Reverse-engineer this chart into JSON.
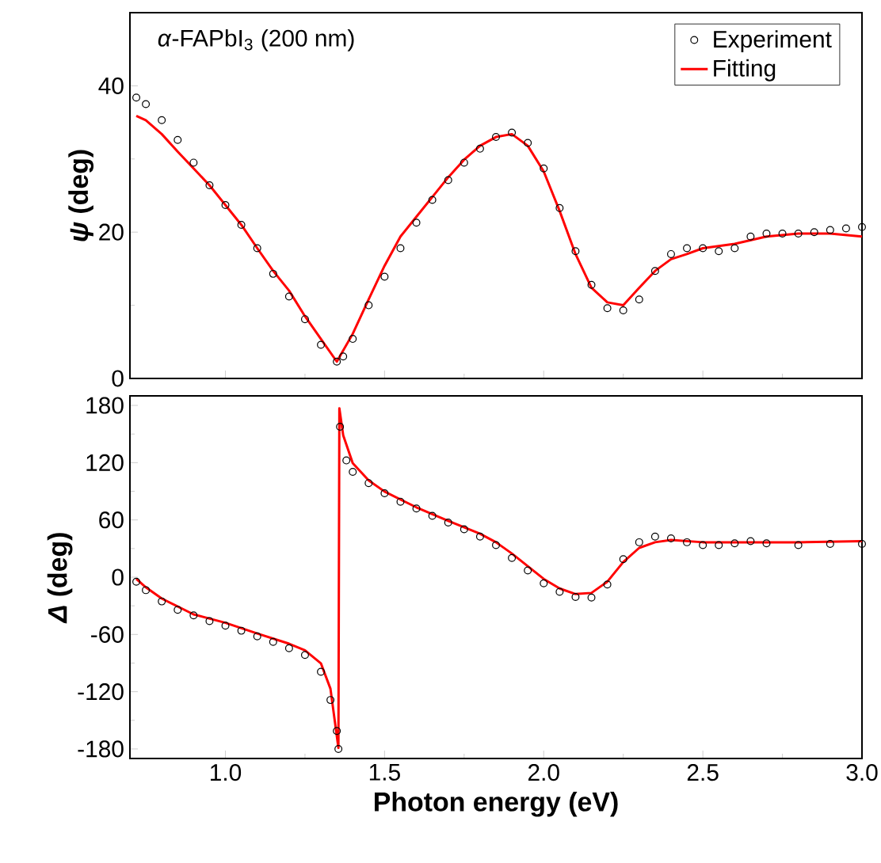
{
  "chart_data": [
    {
      "type": "line",
      "ylabel": "*ψ* (deg)",
      "annotations": [
        "*α*-FAPbI$_{3}$ (200 nm)"
      ],
      "xlim": [
        0.7,
        3.0
      ],
      "ylim": [
        0,
        50
      ],
      "xticks": [
        {
          "value": 1,
          "label": null
        },
        {
          "value": 1.5,
          "label": null
        },
        {
          "value": 2,
          "label": null
        },
        {
          "value": 2.5,
          "label": null
        },
        {
          "value": 3,
          "label": null
        }
      ],
      "yticks": [
        0,
        20,
        40
      ],
      "tick_labels": "y",
      "legend": "top right",
      "grid": false,
      "series": [
        {
          "name": "Experiment",
          "type": "scatter",
          "marker": "circle",
          "color": "#000000",
          "x": [
            0.72,
            0.75,
            0.8,
            0.85,
            0.9,
            0.95,
            1.0,
            1.05,
            1.1,
            1.15,
            1.2,
            1.25,
            1.3,
            1.35,
            1.37,
            1.4,
            1.45,
            1.5,
            1.55,
            1.6,
            1.65,
            1.7,
            1.75,
            1.8,
            1.85,
            1.9,
            1.95,
            2.0,
            2.05,
            2.1,
            2.15,
            2.2,
            2.25,
            2.3,
            2.35,
            2.4,
            2.45,
            2.5,
            2.55,
            2.6,
            2.65,
            2.7,
            2.75,
            2.8,
            2.85,
            2.9,
            2.95,
            3.0
          ],
          "values": [
            38.4,
            37.5,
            35.3,
            32.6,
            29.5,
            26.4,
            23.7,
            21.0,
            17.8,
            14.3,
            11.2,
            8.1,
            4.6,
            2.3,
            3.0,
            5.4,
            10.0,
            13.9,
            17.8,
            21.3,
            24.4,
            27.1,
            29.5,
            31.4,
            33.0,
            33.6,
            32.2,
            28.7,
            23.3,
            17.4,
            12.8,
            9.6,
            9.3,
            10.8,
            14.7,
            17.0,
            17.8,
            17.8,
            17.4,
            17.8,
            19.4,
            19.8,
            19.8,
            19.8,
            20.0,
            20.3,
            20.5,
            20.7
          ]
        },
        {
          "name": "Fitting",
          "type": "line",
          "color": "#ff0000",
          "x": [
            0.72,
            0.75,
            0.8,
            0.85,
            0.9,
            0.95,
            1.0,
            1.05,
            1.1,
            1.15,
            1.2,
            1.25,
            1.3,
            1.35,
            1.4,
            1.45,
            1.5,
            1.55,
            1.6,
            1.65,
            1.7,
            1.75,
            1.8,
            1.85,
            1.9,
            1.95,
            2.0,
            2.05,
            2.1,
            2.15,
            2.2,
            2.25,
            2.3,
            2.35,
            2.4,
            2.45,
            2.5,
            2.55,
            2.6,
            2.7,
            2.8,
            2.9,
            3.0
          ],
          "values": [
            35.9,
            35.3,
            33.4,
            31.0,
            28.7,
            26.4,
            23.7,
            21.0,
            17.8,
            14.7,
            12.0,
            8.5,
            5.4,
            2.3,
            6.1,
            10.8,
            15.4,
            19.4,
            22.1,
            24.8,
            27.5,
            29.9,
            31.8,
            33.0,
            33.4,
            31.8,
            28.3,
            22.9,
            17.0,
            12.4,
            10.4,
            10.0,
            12.4,
            14.7,
            16.3,
            17.0,
            17.8,
            18.1,
            18.4,
            19.4,
            19.8,
            19.8,
            19.4
          ]
        }
      ]
    },
    {
      "type": "line",
      "xlabel": "Photon energy (eV)",
      "ylabel": "*Δ* (deg)",
      "xlim": [
        0.7,
        3.0
      ],
      "ylim": [
        -190,
        190
      ],
      "xticks": [
        {
          "value": 1,
          "label": "1.0"
        },
        {
          "value": 1.5,
          "label": "1.5"
        },
        {
          "value": 2,
          "label": "2.0"
        },
        {
          "value": 2.5,
          "label": "2.5"
        },
        {
          "value": 3,
          "label": "3.0"
        }
      ],
      "yticks": [
        -180,
        -120,
        -60,
        0,
        60,
        120,
        180
      ],
      "legend": false,
      "grid": false,
      "series": [
        {
          "type": "scatter",
          "marker": "circle",
          "color": "#000000",
          "x": [
            0.72,
            0.75,
            0.8,
            0.85,
            0.9,
            0.95,
            1.0,
            1.05,
            1.1,
            1.15,
            1.2,
            1.25,
            1.3,
            1.33,
            1.35,
            1.355,
            1.36,
            1.38,
            1.4,
            1.45,
            1.5,
            1.55,
            1.6,
            1.65,
            1.7,
            1.75,
            1.8,
            1.85,
            1.9,
            1.95,
            2.0,
            2.05,
            2.1,
            2.15,
            2.2,
            2.25,
            2.3,
            2.35,
            2.4,
            2.45,
            2.5,
            2.55,
            2.6,
            2.65,
            2.7,
            2.8,
            2.9,
            3.0
          ],
          "values": [
            -4.7,
            -13.6,
            -25.4,
            -34.2,
            -40.1,
            -46.0,
            -50.8,
            -56.1,
            -62.0,
            -67.9,
            -74.4,
            -81.5,
            -99.2,
            -128.7,
            -161.2,
            -180,
            157.7,
            122.3,
            110.4,
            98.6,
            88.0,
            79.1,
            72.0,
            64.3,
            57.2,
            50.2,
            42.5,
            33.6,
            20.1,
            7.1,
            -6.5,
            -15.3,
            -20.7,
            -21.3,
            -7.7,
            18.9,
            36.6,
            42.5,
            40.7,
            36.6,
            33.6,
            33.6,
            35.4,
            37.8,
            35.4,
            33.6,
            34.8,
            34.8
          ]
        },
        {
          "type": "line",
          "color": "#ff0000",
          "x": [
            0.72,
            0.75,
            0.8,
            0.9,
            1.0,
            1.1,
            1.2,
            1.25,
            1.3,
            1.33,
            1.355,
            1.358,
            1.37,
            1.4,
            1.45,
            1.5,
            1.6,
            1.7,
            1.8,
            1.85,
            1.9,
            2.0,
            2.05,
            2.1,
            2.15,
            2.2,
            2.25,
            2.3,
            2.35,
            2.4,
            2.5,
            2.6,
            2.7,
            2.8,
            3.0
          ],
          "values": [
            -1.8,
            -10.6,
            -22.4,
            -39.0,
            -47.8,
            -59.0,
            -69.7,
            -76.7,
            -90.3,
            -116.9,
            -178.9,
            177,
            148.8,
            119.4,
            101.5,
            89.7,
            73.2,
            59.0,
            45.5,
            36.6,
            24.8,
            -1.8,
            -11.8,
            -17.7,
            -16.5,
            -4.7,
            15.9,
            30.7,
            36.6,
            39.0,
            36.6,
            36.6,
            36.6,
            36.6,
            37.8
          ]
        }
      ]
    }
  ]
}
